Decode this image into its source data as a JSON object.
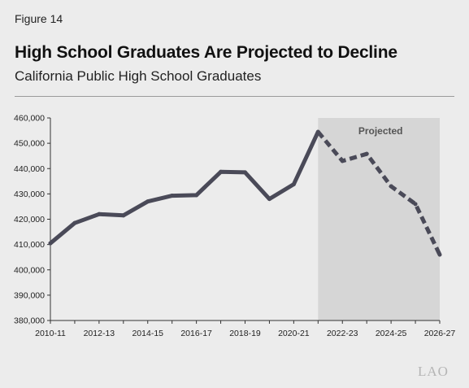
{
  "figure_label": "Figure 14",
  "logo_text": "LAO",
  "colors": {
    "line": "#4a4a58",
    "projected_band": "#d6d6d6",
    "background": "#ececec",
    "axis": "#333333"
  },
  "chart_data": {
    "type": "line",
    "title": "High School Graduates Are Projected to Decline",
    "subtitle": "California Public High School Graduates",
    "xlabel": "",
    "ylabel": "",
    "ylim": [
      380000,
      460000
    ],
    "y_ticks": [
      380000,
      390000,
      400000,
      410000,
      420000,
      430000,
      440000,
      450000,
      460000
    ],
    "y_tick_labels": [
      "380,000",
      "390,000",
      "400,000",
      "410,000",
      "420,000",
      "430,000",
      "440,000",
      "450,000",
      "460,000"
    ],
    "x": [
      "2010-11",
      "2011-12",
      "2012-13",
      "2013-14",
      "2014-15",
      "2015-16",
      "2016-17",
      "2017-18",
      "2018-19",
      "2019-20",
      "2020-21",
      "2021-22",
      "2022-23",
      "2023-24",
      "2024-25",
      "2025-26",
      "2026-27"
    ],
    "x_tick_labels": [
      "2010-11",
      "2012-13",
      "2014-15",
      "2016-17",
      "2018-19",
      "2020-21",
      "2022-23",
      "2024-25",
      "2026-27"
    ],
    "grid": false,
    "projected_region": {
      "start": "2021-22",
      "end": "2026-27",
      "label": "Projected"
    },
    "series": [
      {
        "values": [
          410500,
          418500,
          422000,
          421500,
          427000,
          429300,
          429500,
          438700,
          438500,
          428000,
          433800,
          454500,
          443000,
          445800,
          433000,
          426000,
          406000
        ],
        "actual_through": "2021-22"
      }
    ]
  }
}
